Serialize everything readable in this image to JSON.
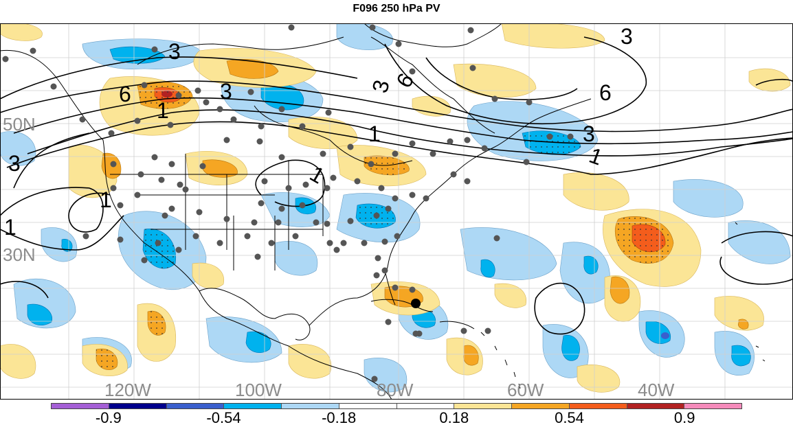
{
  "title": "F096 250 hPa PV",
  "map": {
    "lat_labels": [
      "50N",
      "30N"
    ],
    "lon_labels": [
      "120W",
      "100W",
      "80W",
      "60W",
      "40W"
    ],
    "contour_labels": [
      "3",
      "3",
      "6",
      "6",
      "3",
      "1",
      "3",
      "6",
      "1",
      "3",
      "1",
      "3",
      "1",
      "1",
      "1"
    ],
    "colors": {
      "label_gray": "#8c8c8c",
      "land_line": "#000000",
      "dot": "#555555",
      "highlight_dot": "#000000"
    }
  },
  "colorbar": {
    "colors": [
      "#a45fd6",
      "#00008c",
      "#3a5fcd",
      "#00b2ee",
      "#add8f5",
      "#ffffff",
      "#ffffff",
      "#fbe596",
      "#f5a623",
      "#f45d1c",
      "#b22222",
      "#f58bbb"
    ],
    "labels": [
      "-0.9",
      "-0.54",
      "-0.18",
      "0.18",
      "0.54",
      "0.9"
    ]
  }
}
